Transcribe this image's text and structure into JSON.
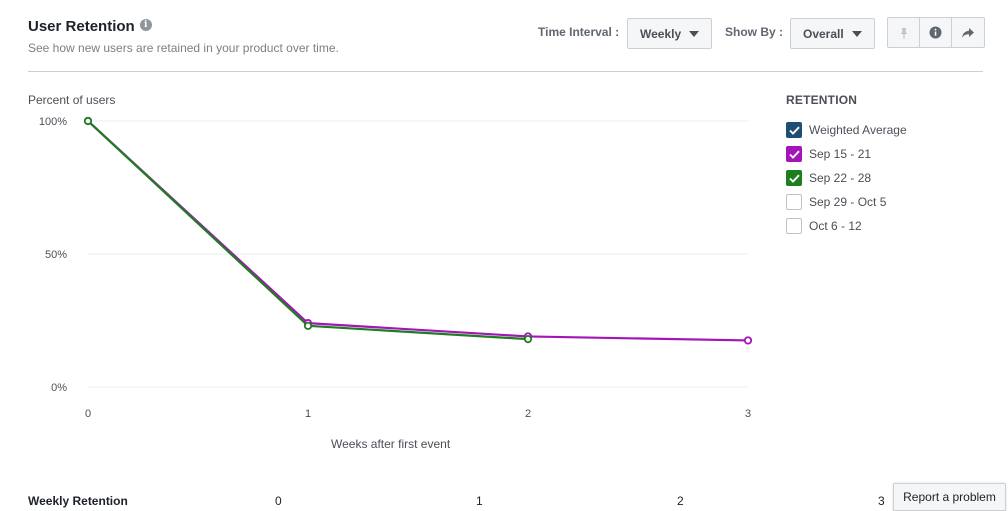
{
  "header": {
    "title": "User Retention",
    "subtitle": "See how new users are retained in your product over time."
  },
  "controls": {
    "time_interval_label": "Time Interval :",
    "time_interval_value": "Weekly",
    "show_by_label": "Show By :",
    "show_by_value": "Overall",
    "icons": [
      "pin-icon",
      "info-icon",
      "share-icon"
    ]
  },
  "legend": {
    "title": "RETENTION",
    "items": [
      {
        "label": "Weighted Average",
        "checked": true,
        "color": "#1c4f73"
      },
      {
        "label": "Sep 15 - 21",
        "checked": true,
        "color": "#a414b8"
      },
      {
        "label": "Sep 22 - 28",
        "checked": true,
        "color": "#1e7d1e"
      },
      {
        "label": "Sep 29 - Oct 5",
        "checked": false,
        "color": "#ffffff"
      },
      {
        "label": "Oct 6 - 12",
        "checked": false,
        "color": "#ffffff"
      }
    ]
  },
  "chart_data": {
    "type": "line",
    "title": "",
    "xlabel": "Weeks after first event",
    "ylabel": "Percent of users",
    "x": [
      0,
      1,
      2,
      3
    ],
    "x_tick_labels": [
      "0",
      "1",
      "2",
      "3"
    ],
    "y_tick_labels": [
      "100%",
      "50%",
      "0%"
    ],
    "y_ticks": [
      100,
      50,
      0
    ],
    "ylim": [
      0,
      100
    ],
    "grid": true,
    "legend_position": "right",
    "series": [
      {
        "name": "Sep 15 - 21",
        "color": "#a414b8",
        "values": [
          100,
          24,
          19,
          17.5
        ]
      },
      {
        "name": "Sep 22 - 28",
        "color": "#1e7d1e",
        "values": [
          100,
          23,
          18,
          null
        ]
      }
    ]
  },
  "bottom": {
    "label": "Weekly Retention",
    "columns": [
      "0",
      "1",
      "2",
      "3"
    ],
    "report_button": "Report a problem"
  }
}
